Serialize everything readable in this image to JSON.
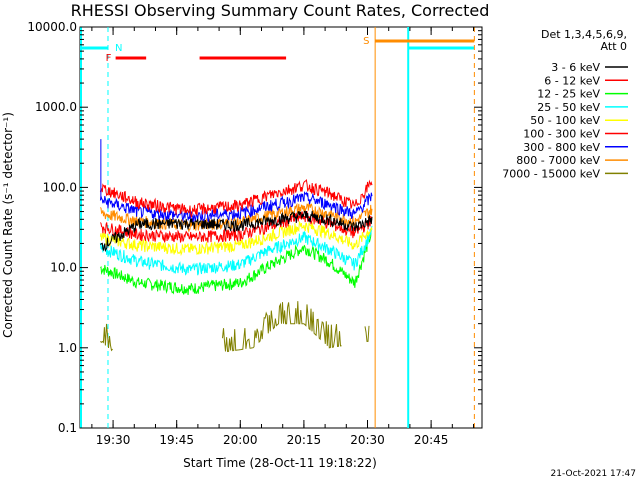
{
  "chart_data": {
    "type": "line",
    "title": "RHESSI Observing Summary Count Rates, Corrected",
    "xlabel": "Start Time (28-Oct-11 19:18:22)",
    "ylabel": "Corrected Count Rate (s⁻¹ detector⁻¹)",
    "yscale": "log",
    "ylim": [
      0.1,
      10000
    ],
    "xlim_minutes": [
      19.37,
      20.95
    ],
    "x_tick_labels": [
      "19:30",
      "19:45",
      "20:00",
      "20:15",
      "20:30",
      "20:45"
    ],
    "y_tick_labels": [
      "0.1",
      "1.0",
      "10.0",
      "100.0",
      "1000.0",
      "10000.0"
    ],
    "legend_header": [
      "Det 1,3,4,5,6,9,",
      "Att 0"
    ],
    "legend_position": "right",
    "series": [
      {
        "name": "3 - 6 keV",
        "color": "#000000",
        "x": [
          19.45,
          19.6,
          19.8,
          20.0,
          20.1,
          20.25,
          20.35,
          20.45,
          20.52
        ],
        "y": [
          18,
          35,
          36,
          34,
          38,
          45,
          40,
          32,
          40
        ]
      },
      {
        "name": "6 - 12 keV",
        "color": "#ff0000",
        "x": [
          19.45,
          19.6,
          19.8,
          20.0,
          20.1,
          20.25,
          20.35,
          20.45,
          20.52
        ],
        "y": [
          100,
          65,
          52,
          60,
          78,
          108,
          85,
          58,
          125
        ]
      },
      {
        "name": "12 - 25 keV",
        "color": "#00ff00",
        "x": [
          19.45,
          19.6,
          19.8,
          20.0,
          20.1,
          20.25,
          20.35,
          20.45,
          20.52
        ],
        "y": [
          10,
          6.5,
          5.5,
          6.5,
          10,
          18,
          12,
          6.5,
          30
        ]
      },
      {
        "name": "25 - 50 keV",
        "color": "#00ffff",
        "x": [
          19.45,
          19.6,
          19.8,
          20.0,
          20.1,
          20.25,
          20.35,
          20.45,
          20.52
        ],
        "y": [
          18,
          12,
          9.5,
          11,
          16,
          24,
          17,
          11,
          30
        ]
      },
      {
        "name": "50 - 100 keV",
        "color": "#ffff00",
        "x": [
          19.45,
          19.6,
          19.8,
          20.0,
          20.1,
          20.25,
          20.35,
          20.45,
          20.52
        ],
        "y": [
          24,
          19,
          17,
          19,
          24,
          34,
          27,
          19,
          32
        ]
      },
      {
        "name": "100 - 300 keV",
        "color": "#ff0000",
        "x": [
          19.45,
          19.6,
          19.8,
          20.0,
          20.1,
          20.25,
          20.35,
          20.45,
          20.52
        ],
        "y": [
          33,
          26,
          24,
          26,
          32,
          44,
          36,
          27,
          40
        ]
      },
      {
        "name": "300 - 800 keV",
        "color": "#0000ff",
        "x": [
          19.45,
          19.6,
          19.8,
          20.0,
          20.1,
          20.25,
          20.35,
          20.45,
          20.52
        ],
        "y": [
          70,
          50,
          44,
          48,
          58,
          75,
          62,
          46,
          80
        ]
      },
      {
        "name": "800 - 7000 keV",
        "color": "#ff8c00",
        "x": [
          19.45,
          19.6,
          19.8,
          20.0,
          20.1,
          20.25,
          20.35,
          20.45,
          20.52
        ],
        "y": [
          48,
          38,
          34,
          37,
          44,
          56,
          47,
          37,
          55
        ]
      },
      {
        "name": "7000 - 15000 keV",
        "color": "#808000",
        "x": [
          19.45,
          19.5,
          19.95,
          20.05,
          20.15,
          20.25,
          20.35,
          20.5
        ],
        "y": [
          1.2,
          0.9,
          0.9,
          1.0,
          2.0,
          2.0,
          1.0,
          1.2
        ]
      }
    ],
    "flag_labels": {
      "night": "N",
      "flare": "F",
      "saa": "S"
    }
  },
  "footer": {
    "timestamp": "21-Oct-2021 17:47"
  }
}
